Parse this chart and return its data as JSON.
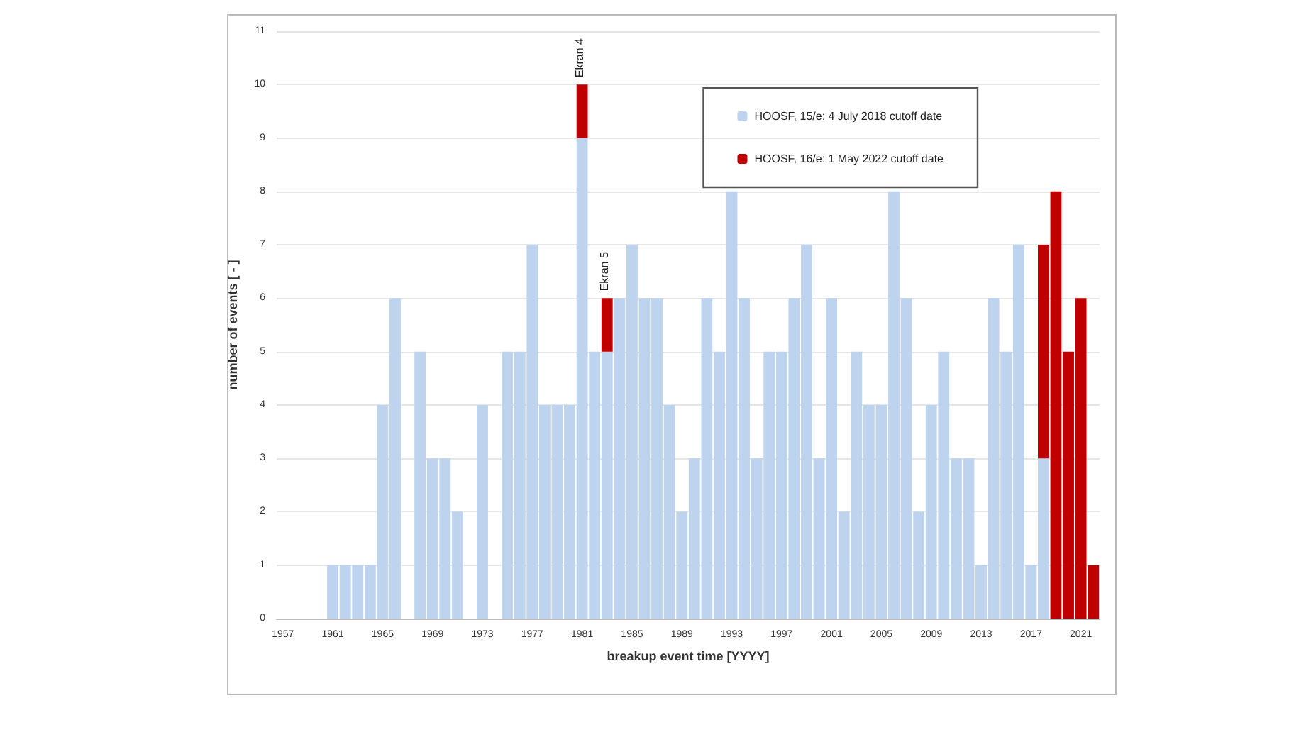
{
  "chart_data": {
    "type": "bar",
    "stacked": true,
    "xlabel": "breakup event time [YYYY]",
    "ylabel": "number of events [ - ]",
    "categories": [
      "1957",
      null,
      null,
      null,
      "1961",
      null,
      null,
      null,
      "1965",
      null,
      null,
      null,
      "1969",
      null,
      null,
      null,
      "1973",
      null,
      null,
      null,
      "1977",
      null,
      null,
      null,
      "1981",
      null,
      null,
      null,
      "1985",
      null,
      null,
      null,
      "1989",
      null,
      null,
      null,
      "1993",
      null,
      null,
      null,
      "1997",
      null,
      null,
      null,
      "2001",
      null,
      null,
      null,
      "2005",
      null,
      null,
      null,
      "2009",
      null,
      null,
      null,
      "2013",
      null,
      null,
      null,
      "2017",
      null,
      null,
      null,
      "2021",
      null
    ],
    "series": [
      {
        "name": "HOOSF, 15/e: 4 July 2018 cutoff date",
        "color": "#bdd3ee",
        "values": [
          0,
          0,
          0,
          0,
          1,
          1,
          1,
          1,
          4,
          6,
          0,
          5,
          3,
          3,
          2,
          0,
          4,
          0,
          5,
          5,
          7,
          4,
          4,
          4,
          9,
          5,
          5,
          6,
          7,
          6,
          6,
          4,
          2,
          3,
          6,
          5,
          8,
          6,
          3,
          5,
          5,
          6,
          7,
          3,
          6,
          2,
          5,
          4,
          4,
          8,
          6,
          2,
          4,
          5,
          3,
          3,
          1,
          6,
          5,
          7,
          1,
          3,
          0,
          0,
          0,
          0
        ]
      },
      {
        "name": "HOOSF, 16/e: 1 May 2022 cutoff date",
        "color": "#c00000",
        "values": [
          0,
          0,
          0,
          0,
          0,
          0,
          0,
          0,
          0,
          0,
          0,
          0,
          0,
          0,
          0,
          0,
          0,
          0,
          0,
          0,
          0,
          0,
          0,
          0,
          1,
          0,
          1,
          0,
          0,
          0,
          0,
          0,
          0,
          0,
          0,
          0,
          0,
          0,
          0,
          0,
          0,
          0,
          0,
          0,
          0,
          0,
          0,
          0,
          0,
          0,
          0,
          0,
          0,
          0,
          0,
          0,
          0,
          0,
          0,
          0,
          0,
          4,
          8,
          5,
          6,
          1
        ]
      }
    ],
    "ylim": [
      0,
      11
    ],
    "yticks": [
      0,
      1,
      2,
      3,
      4,
      5,
      6,
      7,
      8,
      9,
      10,
      11
    ],
    "grid": "y",
    "legend": "top right",
    "annotations": [
      {
        "text": "Ekran 4",
        "y": 10
      },
      {
        "text": "Ekran 5",
        "y": 6
      }
    ]
  }
}
